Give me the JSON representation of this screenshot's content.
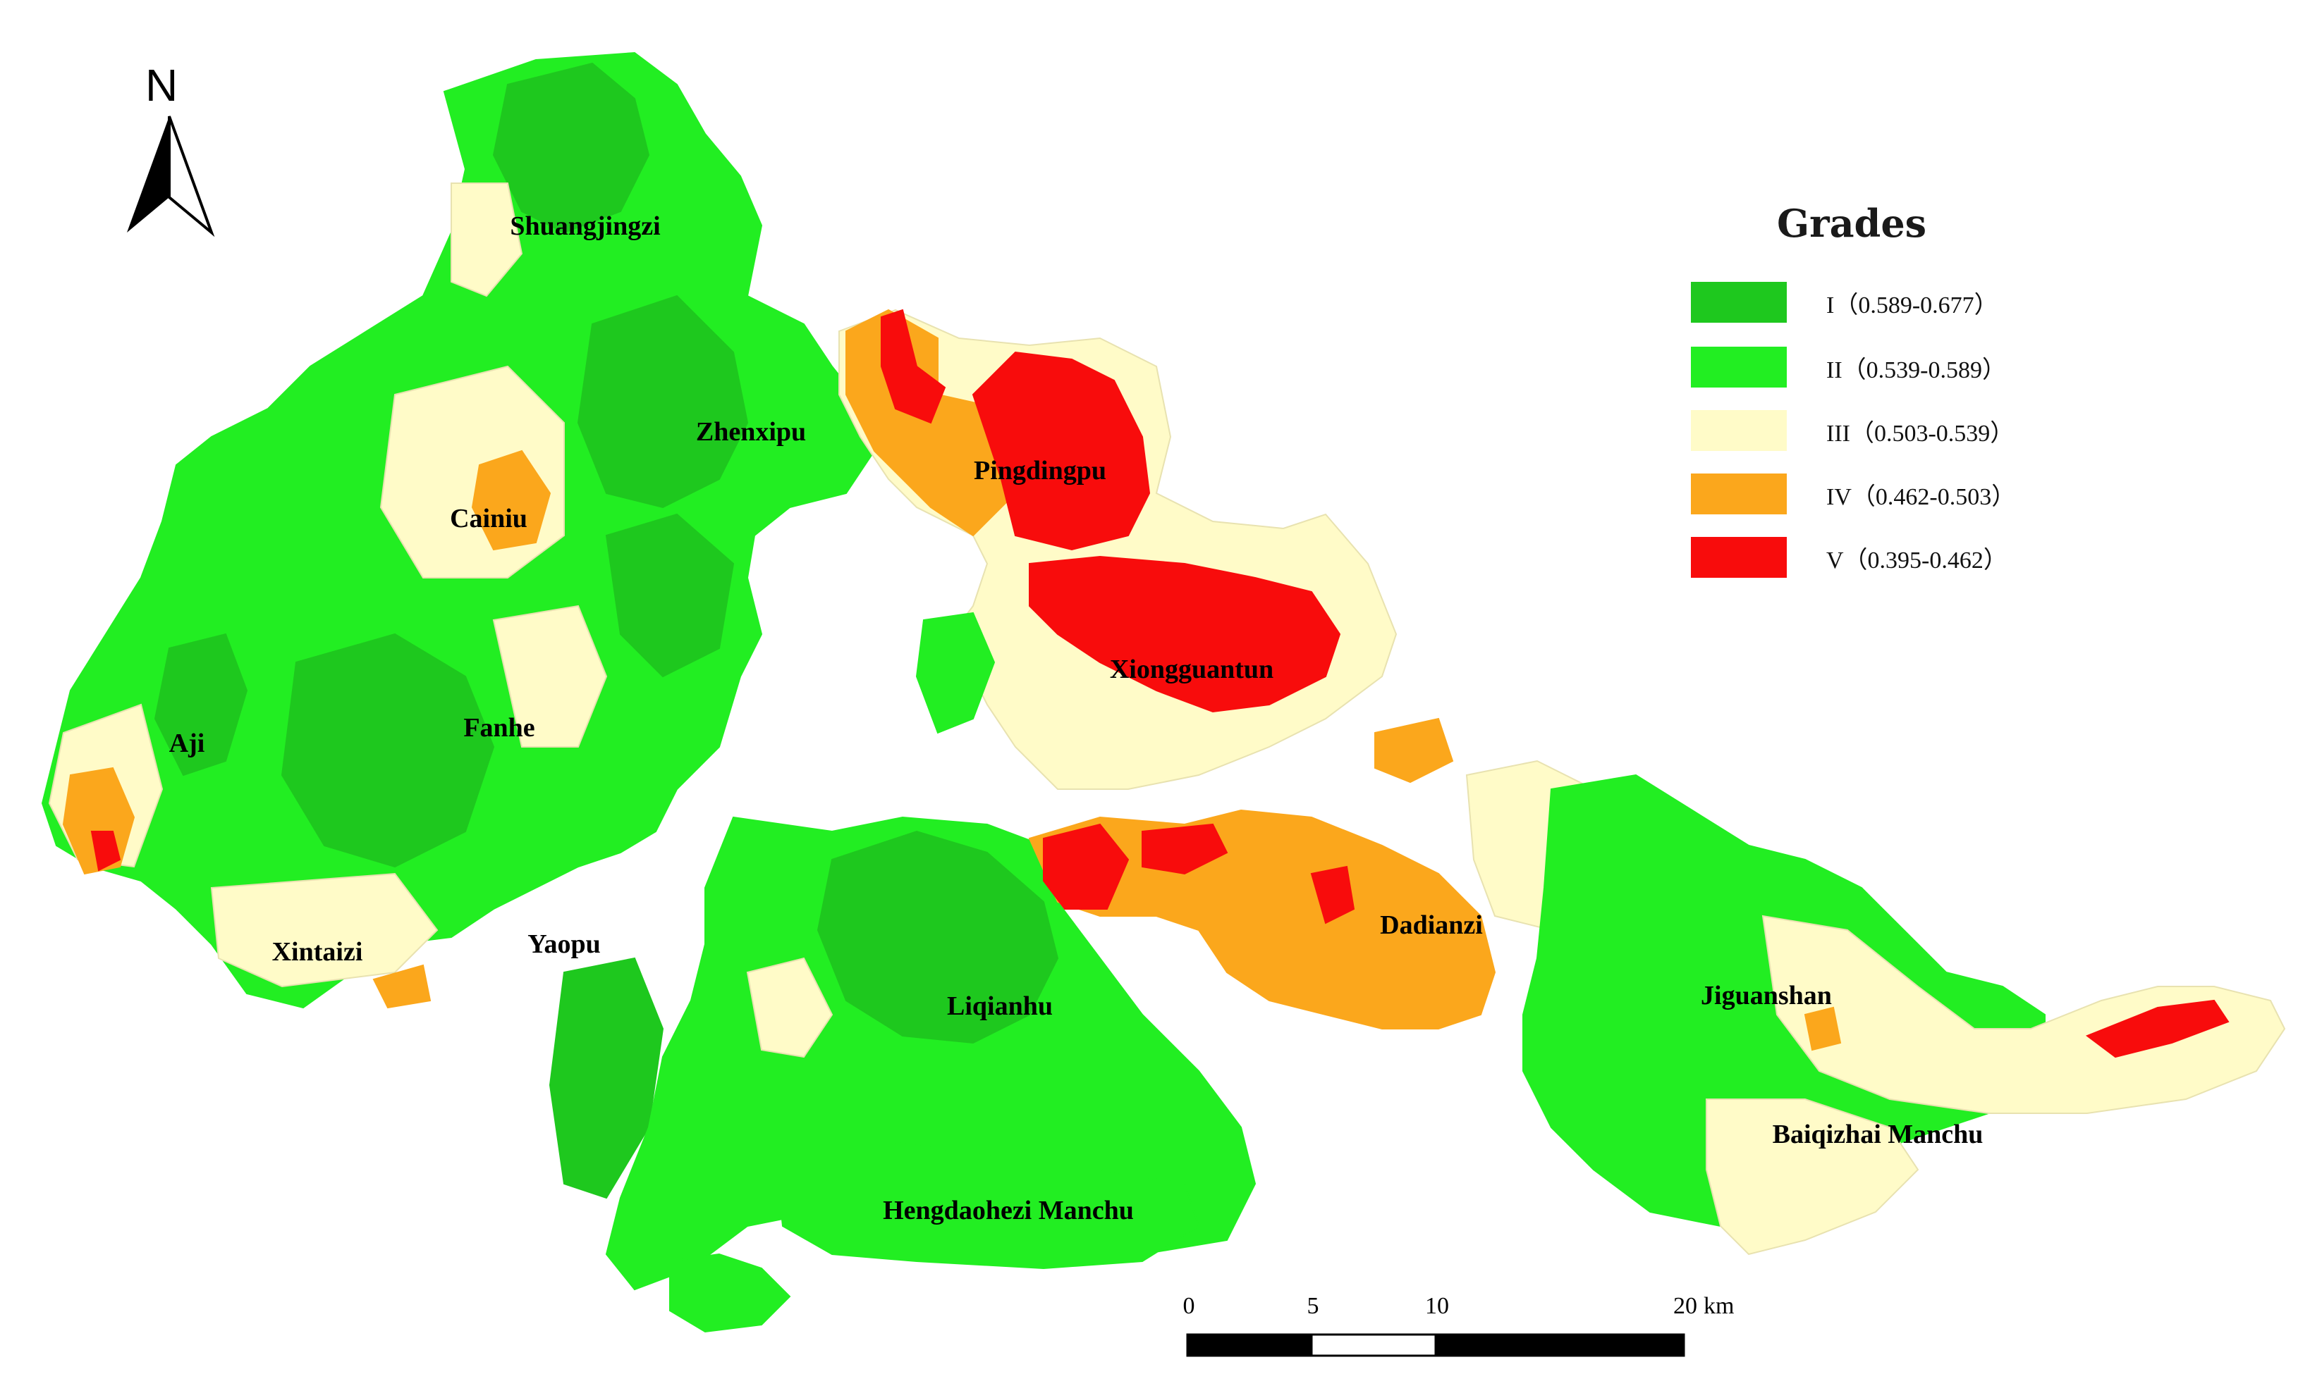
{
  "legend": {
    "title": "Grades",
    "items": [
      {
        "label": "I（0.589-0.677）",
        "color": "#1ec81e"
      },
      {
        "label": "II（0.539-0.589）",
        "color": "#22ee22"
      },
      {
        "label": "III（0.503-0.539）",
        "color": "#fffbc8"
      },
      {
        "label": "IV（0.462-0.503）",
        "color": "#fba71c"
      },
      {
        "label": "V（0.395-0.462）",
        "color": "#f80c0c"
      }
    ]
  },
  "north_arrow": {
    "label": "N"
  },
  "scale_bar": {
    "ticks": [
      "0",
      "5",
      "10",
      "20"
    ],
    "unit": "km"
  },
  "regions": [
    {
      "name": "Shuangjingzi"
    },
    {
      "name": "Zhenxipu"
    },
    {
      "name": "Pingdingpu"
    },
    {
      "name": "Cainiu"
    },
    {
      "name": "Xiongguantun"
    },
    {
      "name": "Aji"
    },
    {
      "name": "Fanhe"
    },
    {
      "name": "Xintaizi"
    },
    {
      "name": "Yaopu"
    },
    {
      "name": "Liqianhu"
    },
    {
      "name": "Dadianzi"
    },
    {
      "name": "Jiguanshan"
    },
    {
      "name": "Baiqizhai Manchu"
    },
    {
      "name": "Hengdaohezi Manchu"
    }
  ]
}
